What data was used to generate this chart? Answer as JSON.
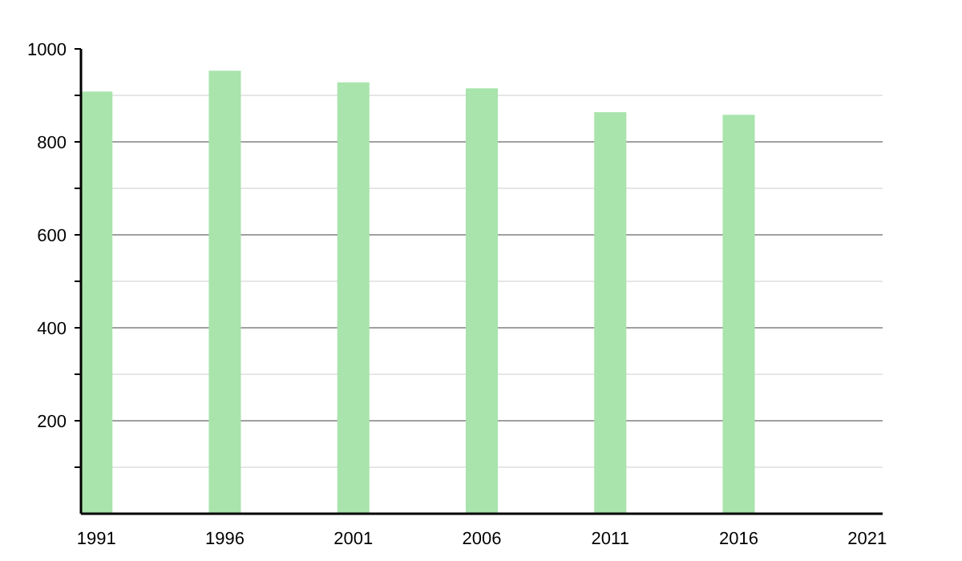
{
  "chart_data": {
    "type": "bar",
    "x": [
      1991,
      1996,
      2001,
      2006,
      2011,
      2016
    ],
    "values": [
      908,
      953,
      928,
      915,
      864,
      858
    ],
    "color": "#a8e4ac",
    "xlim": [
      1990.4,
      2021.6
    ],
    "xticks": [
      1991,
      1996,
      2001,
      2006,
      2011,
      2016,
      2021
    ],
    "ylim": [
      0,
      1000
    ],
    "yticks": [
      {
        "value": 100,
        "label": null
      },
      200,
      {
        "value": 300,
        "label": null
      },
      400,
      {
        "value": 500,
        "label": null
      },
      600,
      {
        "value": 700,
        "label": null
      },
      800,
      {
        "value": 900,
        "label": null
      },
      1000
    ],
    "grid": "y"
  }
}
